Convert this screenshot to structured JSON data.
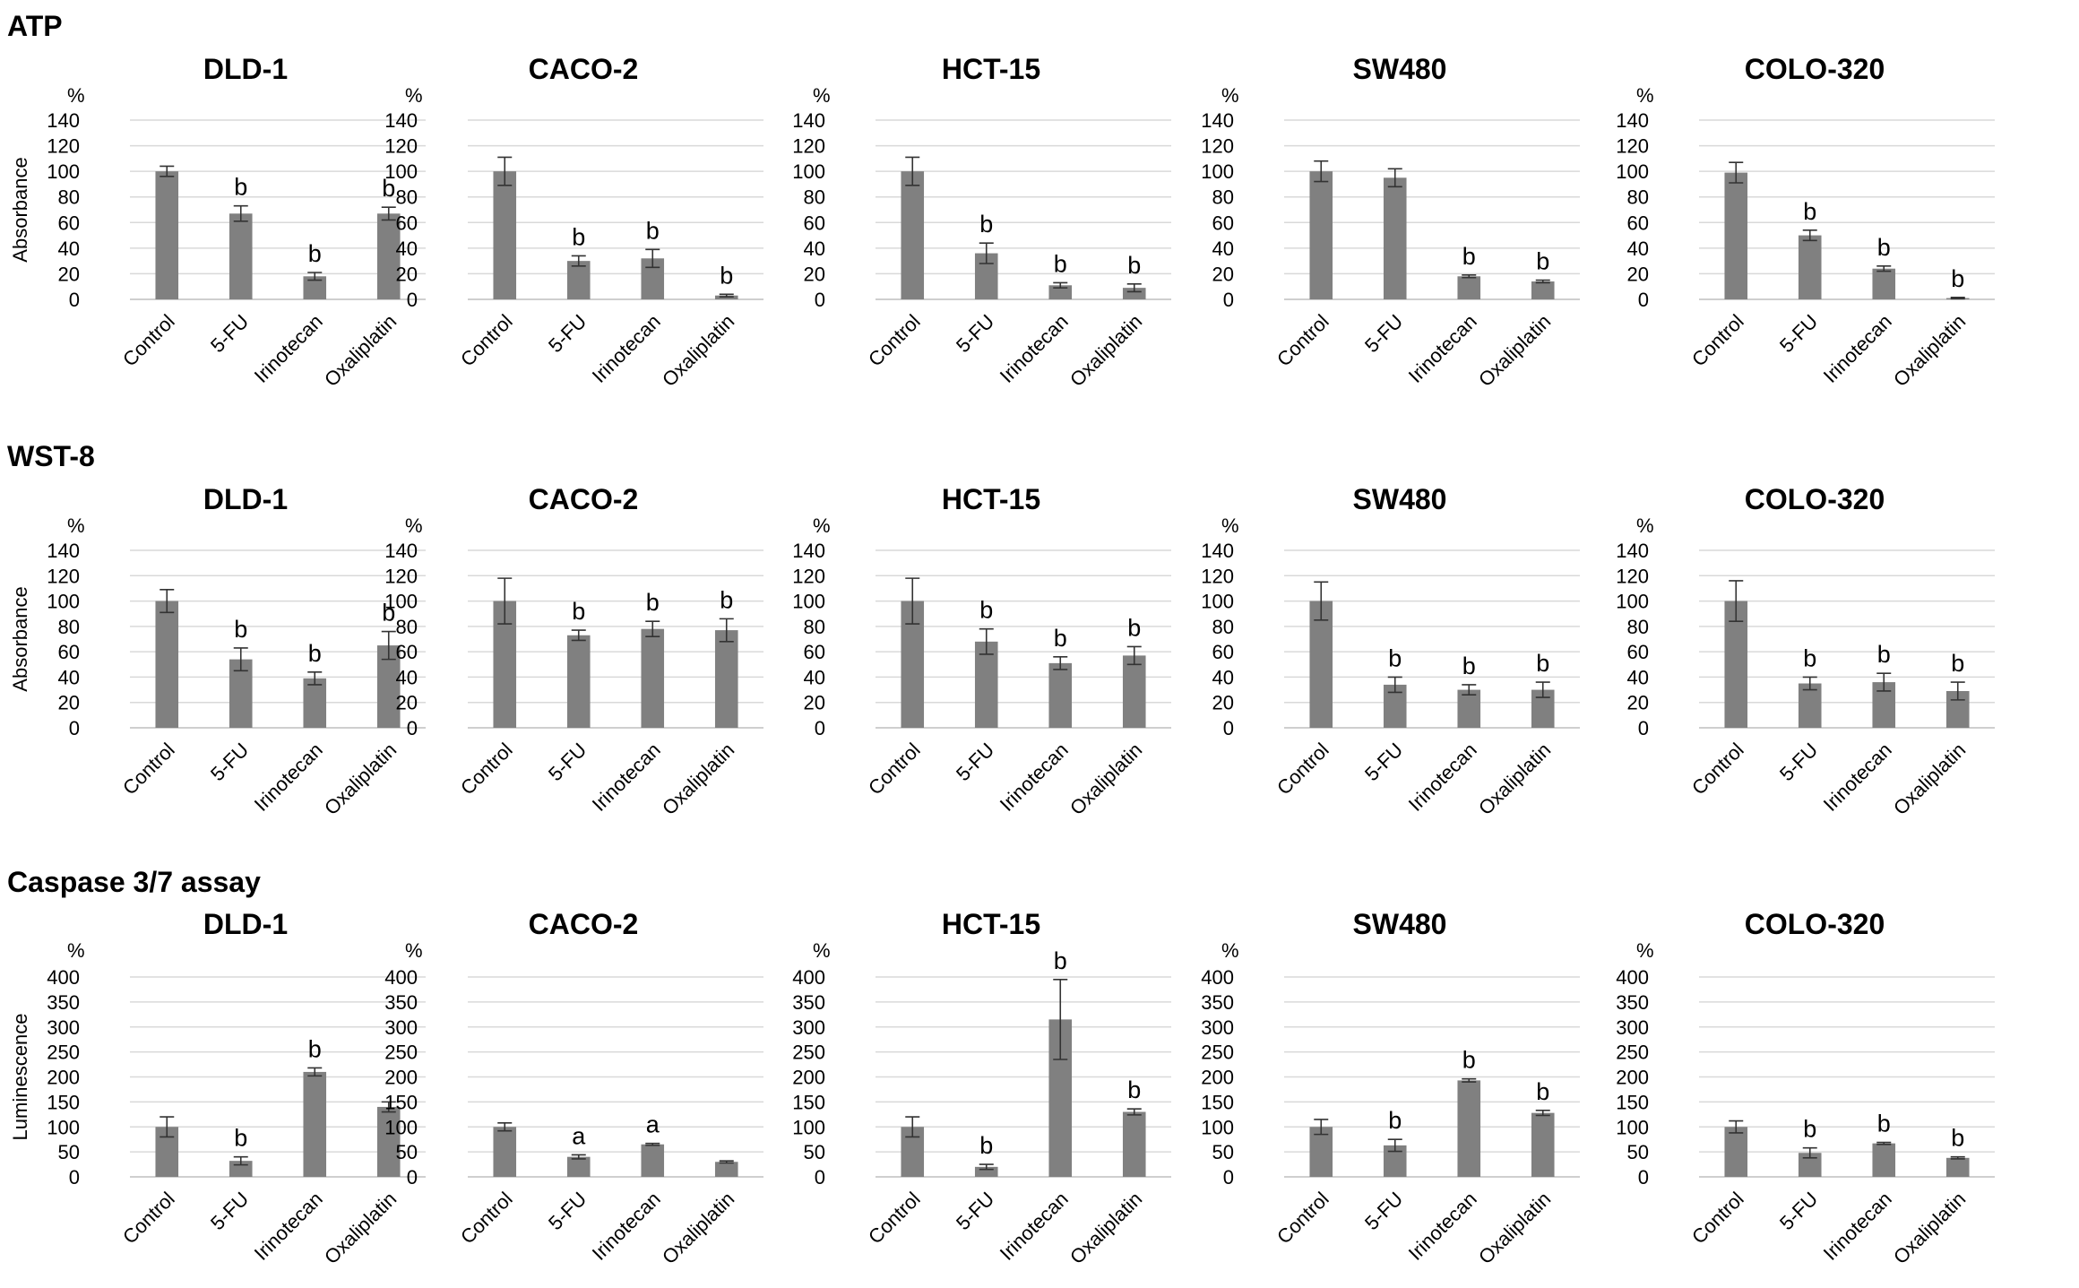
{
  "figure": {
    "sections": [
      {
        "title": "ATP",
        "ylabel": "Absorbance"
      },
      {
        "title": "WST-8",
        "ylabel": "Absorbance"
      },
      {
        "title": "Caspase 3/7 assay",
        "ylabel": "Luminescence"
      }
    ],
    "unit_label": "%",
    "bar_color": "#808080",
    "grid_color": "#d9d9d9",
    "axis_color": "#bfbfbf"
  },
  "chart_data": [
    {
      "type": "bar",
      "section": "ATP",
      "title": "DLD-1",
      "ylabel": "Absorbance",
      "unit": "%",
      "ylim": [
        0,
        140
      ],
      "yticks": [
        0,
        20,
        40,
        60,
        80,
        100,
        120,
        140
      ],
      "categories": [
        "Control",
        "5-FU",
        "Irinotecan",
        "Oxaliplatin"
      ],
      "values": [
        100,
        67,
        18,
        67
      ],
      "errors": [
        4,
        6,
        3,
        5
      ],
      "labels": [
        "",
        "b",
        "b",
        "b"
      ]
    },
    {
      "type": "bar",
      "section": "ATP",
      "title": "CACO-2",
      "ylabel": "",
      "unit": "%",
      "ylim": [
        0,
        140
      ],
      "yticks": [
        0,
        20,
        40,
        60,
        80,
        100,
        120,
        140
      ],
      "categories": [
        "Control",
        "5-FU",
        "Irinotecan",
        "Oxaliplatin"
      ],
      "values": [
        100,
        30,
        32,
        3
      ],
      "errors": [
        11,
        4,
        7,
        1
      ],
      "labels": [
        "",
        "b",
        "b",
        "b"
      ]
    },
    {
      "type": "bar",
      "section": "ATP",
      "title": "HCT-15",
      "ylabel": "",
      "unit": "%",
      "ylim": [
        0,
        140
      ],
      "yticks": [
        0,
        20,
        40,
        60,
        80,
        100,
        120,
        140
      ],
      "categories": [
        "Control",
        "5-FU",
        "Irinotecan",
        "Oxaliplatin"
      ],
      "values": [
        100,
        36,
        11,
        9
      ],
      "errors": [
        11,
        8,
        2,
        3
      ],
      "labels": [
        "",
        "b",
        "b",
        "b"
      ]
    },
    {
      "type": "bar",
      "section": "ATP",
      "title": "SW480",
      "ylabel": "",
      "unit": "%",
      "ylim": [
        0,
        140
      ],
      "yticks": [
        0,
        20,
        40,
        60,
        80,
        100,
        120,
        140
      ],
      "categories": [
        "Control",
        "5-FU",
        "Irinotecan",
        "Oxaliplatin"
      ],
      "values": [
        100,
        95,
        18,
        14
      ],
      "errors": [
        8,
        7,
        1,
        1
      ],
      "labels": [
        "",
        "",
        "b",
        "b"
      ]
    },
    {
      "type": "bar",
      "section": "ATP",
      "title": "COLO-320",
      "ylabel": "",
      "unit": "%",
      "ylim": [
        0,
        140
      ],
      "yticks": [
        0,
        20,
        40,
        60,
        80,
        100,
        120,
        140
      ],
      "categories": [
        "Control",
        "5-FU",
        "Irinotecan",
        "Oxaliplatin"
      ],
      "values": [
        99,
        50,
        24,
        1
      ],
      "errors": [
        8,
        4,
        2,
        0.5
      ],
      "labels": [
        "",
        "b",
        "b",
        "b"
      ]
    },
    {
      "type": "bar",
      "section": "WST-8",
      "title": "DLD-1",
      "ylabel": "Absorbance",
      "unit": "%",
      "ylim": [
        0,
        140
      ],
      "yticks": [
        0,
        20,
        40,
        60,
        80,
        100,
        120,
        140
      ],
      "categories": [
        "Control",
        "5-FU",
        "Irinotecan",
        "Oxaliplatin"
      ],
      "values": [
        100,
        54,
        39,
        65
      ],
      "errors": [
        9,
        9,
        5,
        11
      ],
      "labels": [
        "",
        "b",
        "b",
        "b"
      ]
    },
    {
      "type": "bar",
      "section": "WST-8",
      "title": "CACO-2",
      "ylabel": "",
      "unit": "%",
      "ylim": [
        0,
        140
      ],
      "yticks": [
        0,
        20,
        40,
        60,
        80,
        100,
        120,
        140
      ],
      "categories": [
        "Control",
        "5-FU",
        "Irinotecan",
        "Oxaliplatin"
      ],
      "values": [
        100,
        73,
        78,
        77
      ],
      "errors": [
        18,
        4,
        6,
        9
      ],
      "labels": [
        "",
        "b",
        "b",
        "b"
      ]
    },
    {
      "type": "bar",
      "section": "WST-8",
      "title": "HCT-15",
      "ylabel": "",
      "unit": "%",
      "ylim": [
        0,
        140
      ],
      "yticks": [
        0,
        20,
        40,
        60,
        80,
        100,
        120,
        140
      ],
      "categories": [
        "Control",
        "5-FU",
        "Irinotecan",
        "Oxaliplatin"
      ],
      "values": [
        100,
        68,
        51,
        57
      ],
      "errors": [
        18,
        10,
        5,
        7
      ],
      "labels": [
        "",
        "b",
        "b",
        "b"
      ]
    },
    {
      "type": "bar",
      "section": "WST-8",
      "title": "SW480",
      "ylabel": "",
      "unit": "%",
      "ylim": [
        0,
        140
      ],
      "yticks": [
        0,
        20,
        40,
        60,
        80,
        100,
        120,
        140
      ],
      "categories": [
        "Control",
        "5-FU",
        "Irinotecan",
        "Oxaliplatin"
      ],
      "values": [
        100,
        34,
        30,
        30
      ],
      "errors": [
        15,
        6,
        4,
        6
      ],
      "labels": [
        "",
        "b",
        "b",
        "b"
      ]
    },
    {
      "type": "bar",
      "section": "WST-8",
      "title": "COLO-320",
      "ylabel": "",
      "unit": "%",
      "ylim": [
        0,
        140
      ],
      "yticks": [
        0,
        20,
        40,
        60,
        80,
        100,
        120,
        140
      ],
      "categories": [
        "Control",
        "5-FU",
        "Irinotecan",
        "Oxaliplatin"
      ],
      "values": [
        100,
        35,
        36,
        29
      ],
      "errors": [
        16,
        5,
        7,
        7
      ],
      "labels": [
        "",
        "b",
        "b",
        "b"
      ]
    },
    {
      "type": "bar",
      "section": "Caspase 3/7 assay",
      "title": "DLD-1",
      "ylabel": "Luminescence",
      "unit": "%",
      "ylim": [
        0,
        400
      ],
      "yticks": [
        0,
        50,
        100,
        150,
        200,
        250,
        300,
        350,
        400
      ],
      "categories": [
        "Control",
        "5-FU",
        "Irinotecan",
        "Oxaliplatin"
      ],
      "values": [
        100,
        32,
        210,
        140
      ],
      "errors": [
        20,
        8,
        8,
        10
      ],
      "labels": [
        "",
        "b",
        "b",
        ""
      ]
    },
    {
      "type": "bar",
      "section": "Caspase 3/7 assay",
      "title": "CACO-2",
      "ylabel": "",
      "unit": "%",
      "ylim": [
        0,
        400
      ],
      "yticks": [
        0,
        50,
        100,
        150,
        200,
        250,
        300,
        350,
        400
      ],
      "categories": [
        "Control",
        "5-FU",
        "Irinotecan",
        "Oxaliplatin"
      ],
      "values": [
        100,
        40,
        65,
        30
      ],
      "errors": [
        8,
        4,
        2,
        2
      ],
      "labels": [
        "",
        "a",
        "a",
        ""
      ]
    },
    {
      "type": "bar",
      "section": "Caspase 3/7 assay",
      "title": "HCT-15",
      "ylabel": "",
      "unit": "%",
      "ylim": [
        0,
        400
      ],
      "yticks": [
        0,
        50,
        100,
        150,
        200,
        250,
        300,
        350,
        400
      ],
      "categories": [
        "Control",
        "5-FU",
        "Irinotecan",
        "Oxaliplatin"
      ],
      "values": [
        100,
        20,
        315,
        130
      ],
      "errors": [
        20,
        5,
        80,
        6
      ],
      "labels": [
        "",
        "b",
        "b",
        "b"
      ]
    },
    {
      "type": "bar",
      "section": "Caspase 3/7 assay",
      "title": "SW480",
      "ylabel": "",
      "unit": "%",
      "ylim": [
        0,
        400
      ],
      "yticks": [
        0,
        50,
        100,
        150,
        200,
        250,
        300,
        350,
        400
      ],
      "categories": [
        "Control",
        "5-FU",
        "Irinotecan",
        "Oxaliplatin"
      ],
      "values": [
        100,
        63,
        193,
        128
      ],
      "errors": [
        15,
        12,
        3,
        5
      ],
      "labels": [
        "",
        "b",
        "b",
        "b"
      ]
    },
    {
      "type": "bar",
      "section": "Caspase 3/7 assay",
      "title": "COLO-320",
      "ylabel": "",
      "unit": "%",
      "ylim": [
        0,
        400
      ],
      "yticks": [
        0,
        50,
        100,
        150,
        200,
        250,
        300,
        350,
        400
      ],
      "categories": [
        "Control",
        "5-FU",
        "Irinotecan",
        "Oxaliplatin"
      ],
      "values": [
        100,
        48,
        67,
        38
      ],
      "errors": [
        12,
        10,
        2,
        2
      ],
      "labels": [
        "",
        "b",
        "b",
        "b"
      ]
    }
  ]
}
